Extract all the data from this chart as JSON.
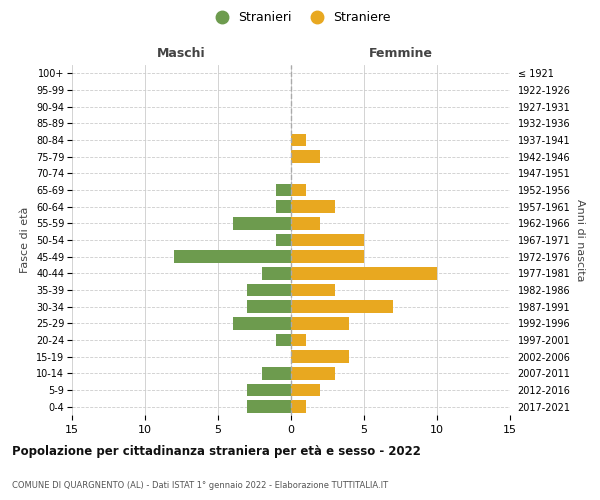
{
  "age_groups": [
    "100+",
    "95-99",
    "90-94",
    "85-89",
    "80-84",
    "75-79",
    "70-74",
    "65-69",
    "60-64",
    "55-59",
    "50-54",
    "45-49",
    "40-44",
    "35-39",
    "30-34",
    "25-29",
    "20-24",
    "15-19",
    "10-14",
    "5-9",
    "0-4"
  ],
  "birth_years": [
    "≤ 1921",
    "1922-1926",
    "1927-1931",
    "1932-1936",
    "1937-1941",
    "1942-1946",
    "1947-1951",
    "1952-1956",
    "1957-1961",
    "1962-1966",
    "1967-1971",
    "1972-1976",
    "1977-1981",
    "1982-1986",
    "1987-1991",
    "1992-1996",
    "1997-2001",
    "2002-2006",
    "2007-2011",
    "2012-2016",
    "2017-2021"
  ],
  "maschi": [
    0,
    0,
    0,
    0,
    0,
    0,
    0,
    1,
    1,
    4,
    1,
    8,
    2,
    3,
    3,
    4,
    1,
    0,
    2,
    3,
    3
  ],
  "femmine": [
    0,
    0,
    0,
    0,
    1,
    2,
    0,
    1,
    3,
    2,
    5,
    5,
    10,
    3,
    7,
    4,
    1,
    4,
    3,
    2,
    1
  ],
  "color_maschi": "#6d9b4e",
  "color_femmine": "#e8a820",
  "title": "Popolazione per cittadinanza straniera per età e sesso - 2022",
  "subtitle": "COMUNE DI QUARGNENTO (AL) - Dati ISTAT 1° gennaio 2022 - Elaborazione TUTTITALIA.IT",
  "ylabel_left": "Fasce di età",
  "ylabel_right": "Anni di nascita",
  "xlabel_left": "Maschi",
  "xlabel_right": "Femmine",
  "legend_maschi": "Stranieri",
  "legend_femmine": "Straniere",
  "xlim": 15,
  "background_color": "#ffffff",
  "grid_color": "#cccccc"
}
